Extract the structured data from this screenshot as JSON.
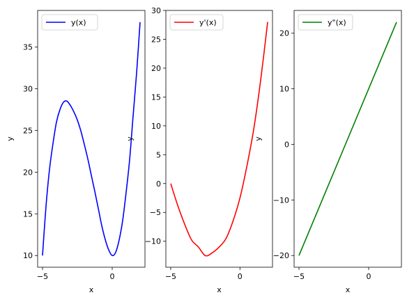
{
  "chart_data": [
    {
      "type": "line",
      "xlabel": "x",
      "ylabel": "y",
      "xlim": [
        -5.35,
        2.35
      ],
      "ylim": [
        8.6,
        39.4
      ],
      "xticks": [
        -5,
        0
      ],
      "yticks": [
        10,
        15,
        20,
        25,
        30,
        35
      ],
      "legend_position": "upper-left",
      "series": [
        {
          "name": "y(x)",
          "color": "#0000ff",
          "x": [
            -5,
            -4.75,
            -4.5,
            -4.25,
            -4,
            -3.75,
            -3.5,
            -3.25,
            -3,
            -2.75,
            -2.5,
            -2.25,
            -2,
            -1.75,
            -1.5,
            -1.25,
            -1,
            -0.75,
            -0.5,
            -0.25,
            0,
            0.25,
            0.5,
            0.75,
            1,
            1.25,
            1.5,
            1.75,
            2
          ],
          "y": [
            10,
            15.89,
            20.31,
            23.42,
            26.0,
            27.5,
            28.38,
            28.52,
            28.0,
            27.23,
            26.25,
            24.95,
            23.33,
            21.59,
            19.63,
            17.7,
            15.67,
            13.59,
            11.92,
            10.67,
            10.0,
            10.39,
            11.88,
            14.2,
            17.6,
            21.5,
            26.75,
            31.9,
            38.0
          ]
        }
      ]
    },
    {
      "type": "line",
      "xlabel": "x",
      "ylabel": "y",
      "xlim": [
        -5.35,
        2.35
      ],
      "ylim": [
        -14.5,
        30.0
      ],
      "xticks": [
        -5,
        0
      ],
      "yticks": [
        -10,
        -5,
        0,
        5,
        10,
        15,
        20,
        25,
        30
      ],
      "legend_position": "upper-left",
      "series": [
        {
          "name": "y'(x)",
          "color": "#ff0000",
          "x": [
            -5,
            -4.5,
            -4,
            -3.5,
            -3,
            -2.5,
            -2,
            -1.5,
            -1,
            -0.5,
            0,
            0.5,
            1,
            1.5,
            2
          ],
          "y": [
            0,
            -3.75,
            -7,
            -9.75,
            -11,
            -12.5,
            -12,
            -11,
            -9.5,
            -6.5,
            -2.5,
            3,
            9.5,
            18,
            28
          ]
        }
      ]
    },
    {
      "type": "line",
      "xlabel": "x",
      "ylabel": "y",
      "xlim": [
        -5.35,
        2.35
      ],
      "ylim": [
        -22.1,
        24.1
      ],
      "xticks": [
        -5,
        0
      ],
      "yticks": [
        -20,
        -10,
        0,
        10,
        20
      ],
      "legend_position": "upper-left",
      "series": [
        {
          "name": "y\"(x)",
          "color": "#008000",
          "x": [
            -5,
            2
          ],
          "y": [
            -20,
            22
          ]
        }
      ]
    }
  ]
}
